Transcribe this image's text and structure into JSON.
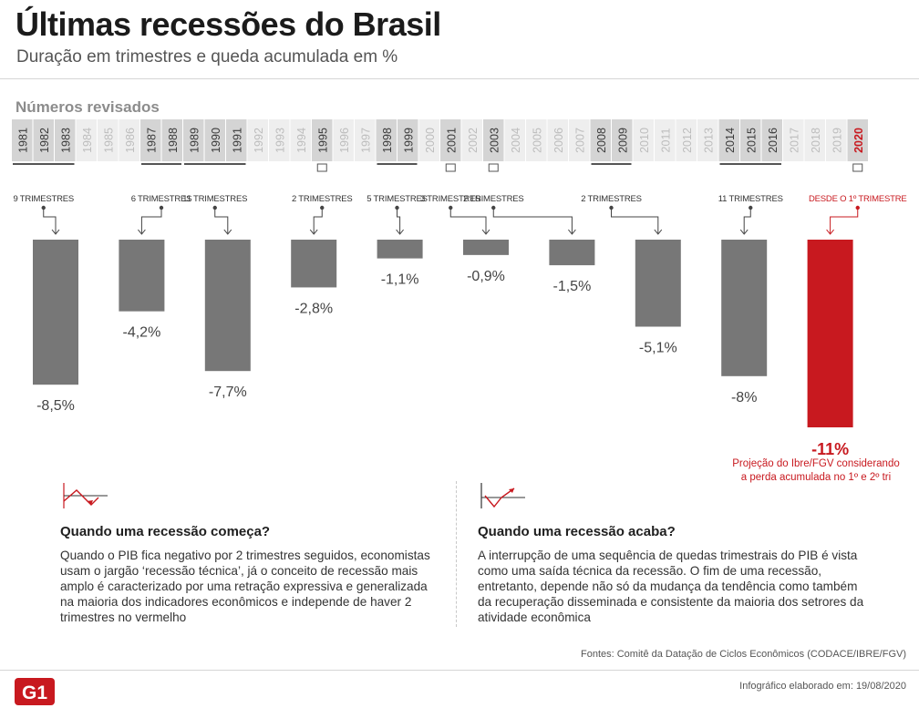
{
  "header": {
    "title": "Últimas recessões do Brasil",
    "subtitle": "Duração em trimestres e queda acumulada em %",
    "section_label": "Números revisados"
  },
  "colors": {
    "bar": "#777777",
    "highlight": "#c8191f",
    "year_active_bg": "#d4d4d4",
    "year_inactive_bg": "#eeeeee",
    "year_active_text": "#3a3a3a",
    "year_inactive_text": "#bdbdbd"
  },
  "chart_data": {
    "type": "bar",
    "title": "Últimas recessões do Brasil",
    "subtitle": "Duração em trimestres e queda acumulada em %",
    "years": [
      "1981",
      "1982",
      "1983",
      "1984",
      "1985",
      "1986",
      "1987",
      "1988",
      "1989",
      "1990",
      "1991",
      "1992",
      "1993",
      "1994",
      "1995",
      "1996",
      "1997",
      "1998",
      "1999",
      "2000",
      "2001",
      "2002",
      "2003",
      "2004",
      "2005",
      "2006",
      "2007",
      "2008",
      "2009",
      "2010",
      "2011",
      "2012",
      "2013",
      "2014",
      "2015",
      "2016",
      "2017",
      "2018",
      "2019",
      "2020"
    ],
    "recession_years": [
      "1981",
      "1982",
      "1983",
      "1987",
      "1988",
      "1989",
      "1990",
      "1991",
      "1995",
      "1998",
      "1999",
      "2001",
      "2003",
      "2008",
      "2009",
      "2014",
      "2015",
      "2016",
      "2020"
    ],
    "highlight_year": "2020",
    "recessions": [
      {
        "start": "1981",
        "end": "1983",
        "duration": "9 TRIMESTRES",
        "value": -8.5,
        "label": "-8,5%"
      },
      {
        "start": "1987",
        "end": "1988",
        "duration": "6 TRIMESTRES",
        "value": -4.2,
        "label": "-4,2%"
      },
      {
        "start": "1989",
        "end": "1991",
        "duration": "11 TRIMESTRES",
        "value": -7.7,
        "label": "-7,7%"
      },
      {
        "start": "1995",
        "end": "1995",
        "duration": "2 TRIMESTRES",
        "value": -2.8,
        "label": "-2,8%"
      },
      {
        "start": "1998",
        "end": "1999",
        "duration": "5 TRIMESTRES",
        "value": -1.1,
        "label": "-1,1%"
      },
      {
        "start": "2001",
        "end": "2001",
        "duration": "3 TRIMESTRES",
        "value": -0.9,
        "label": "-0,9%"
      },
      {
        "start": "2003",
        "end": "2003",
        "duration": "2 TRIMESTRES",
        "value": -1.5,
        "label": "-1,5%"
      },
      {
        "start": "2008",
        "end": "2009",
        "duration": "2 TRIMESTRES",
        "value": -5.1,
        "label": "-5,1%"
      },
      {
        "start": "2014",
        "end": "2016",
        "duration": "11 TRIMESTRES",
        "value": -8.0,
        "label": "-8%"
      },
      {
        "start": "2020",
        "end": "2020",
        "duration": "DESDE O 1º TRIMESTRE",
        "value": -11,
        "label": "-11%",
        "highlight": true
      }
    ],
    "ylim": [
      -11,
      0
    ]
  },
  "note": "Projeção do Ibre/FGV considerando a perda acumulada no 1º e 2º tri",
  "left_box": {
    "title": "Quando uma recessão começa?",
    "text": "Quando o PIB fica negativo por 2 trimestres seguidos, economistas usam o jargão ‘recessão técnica’, já o conceito de recessão mais amplo é caracterizado por uma retração expressiva e generalizada na maioria dos indicadores econômicos e independe de haver 2 trimestres no vermelho"
  },
  "right_box": {
    "title": "Quando uma recessão acaba?",
    "text": "A interrupção de uma sequência de quedas trimestrais do PIB é vista como uma saída técnica da recessão. O fim de uma recessão, entretanto, depende não só da mudança da tendência como também da recuperação disseminada e consistente da maioria dos setrores da atividade econômica"
  },
  "footer": {
    "sources": "Fontes: Comitê da Datação de Ciclos Econômicos (CODACE/IBRE/FGV)",
    "logo": "G1",
    "made": "Infográfico elaborado em: 19/08/2020"
  }
}
